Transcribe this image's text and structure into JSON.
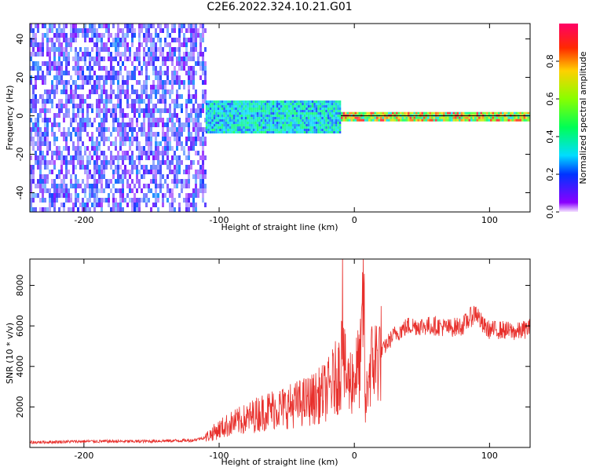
{
  "title": "C2E6.2022.324.10.21.G01",
  "chart_data": [
    {
      "type": "heatmap",
      "xlabel": "Height of straight line (km)",
      "ylabel": "Frequency (Hz)",
      "xlim": [
        -240,
        130
      ],
      "ylim": [
        -50,
        48
      ],
      "xticks": [
        -200,
        -100,
        0,
        100
      ],
      "yticks": [
        -40,
        -20,
        0,
        20,
        40
      ],
      "colorbar": {
        "label": "Normalized spectral amplitude",
        "range": [
          0,
          1
        ],
        "ticks": [
          "0.0",
          "0.2",
          "0.4",
          "0.6",
          "0.8"
        ],
        "tick_values": [
          0,
          0.2,
          0.4,
          0.6,
          0.8
        ],
        "colormap": "gist_rainbow"
      },
      "regions": [
        {
          "x": [
            -240,
            -110
          ],
          "freq": [
            -50,
            48
          ],
          "amplitude": [
            0.05,
            0.25
          ],
          "note": "diffuse broadband noise"
        },
        {
          "x": [
            -110,
            -10
          ],
          "freq": [
            -8,
            8
          ],
          "amplitude": [
            0.2,
            0.45
          ]
        },
        {
          "x": [
            -10,
            130
          ],
          "freq": [
            -2,
            2
          ],
          "amplitude": [
            0.3,
            0.95
          ]
        }
      ]
    },
    {
      "type": "line",
      "xlabel": "Height of straight line (km)",
      "ylabel": "SNR (10 * v/v)",
      "xlim": [
        -240,
        130
      ],
      "ylim": [
        0,
        9300
      ],
      "xticks": [
        -200,
        -100,
        0,
        100
      ],
      "yticks": [
        2000,
        4000,
        6000,
        8000
      ],
      "color": "#e8302c",
      "x": [
        -240,
        -200,
        -160,
        -120,
        -110,
        -100,
        -90,
        -80,
        -70,
        -60,
        -50,
        -40,
        -30,
        -20,
        -15,
        -10,
        -9,
        -8,
        -5,
        0,
        5,
        7,
        8,
        10,
        12,
        15,
        20,
        25,
        30,
        35,
        40,
        50,
        60,
        70,
        80,
        90,
        95,
        100,
        110,
        120,
        130
      ],
      "y": [
        250,
        300,
        300,
        350,
        500,
        900,
        1200,
        1400,
        1700,
        1900,
        2000,
        2200,
        2400,
        2800,
        3300,
        3800,
        9300,
        4000,
        3200,
        3500,
        4200,
        8300,
        1400,
        3500,
        4000,
        4300,
        4700,
        5200,
        5600,
        5800,
        6000,
        6000,
        6000,
        5900,
        6000,
        6700,
        6000,
        5800,
        5800,
        5700,
        5900
      ]
    }
  ]
}
